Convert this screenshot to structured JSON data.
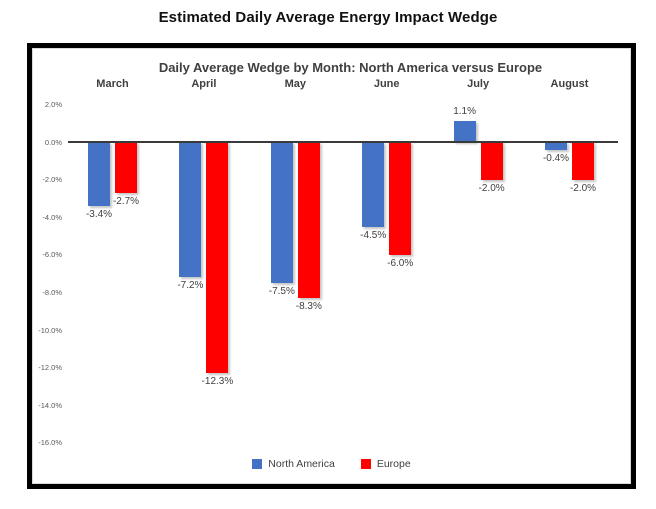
{
  "page_title": "Estimated Daily Average Energy Impact Wedge",
  "chart_data": {
    "type": "bar",
    "title": "Daily Average Wedge by Month: North America versus Europe",
    "categories": [
      "March",
      "April",
      "May",
      "June",
      "July",
      "August"
    ],
    "series": [
      {
        "name": "North America",
        "color": "#4472C4",
        "values": [
          -3.4,
          -7.2,
          -7.5,
          -4.5,
          1.1,
          -0.4
        ],
        "labels": [
          "-3.4%",
          "-7.2%",
          "-7.5%",
          "-4.5%",
          "1.1%",
          "-0.4%"
        ]
      },
      {
        "name": "Europe",
        "color": "#FF0000",
        "values": [
          -2.7,
          -12.3,
          -8.3,
          -6.0,
          -2.0,
          -2.0
        ],
        "labels": [
          "-2.7%",
          "-12.3%",
          "-8.3%",
          "-6.0%",
          "-2.0%",
          "-2.0%"
        ]
      }
    ],
    "y_axis": {
      "tick_labels": [
        "2.0%",
        "0.0%",
        "-2.0%",
        "-4.0%",
        "-6.0%",
        "-8.0%",
        "-10.0%",
        "-12.0%",
        "-14.0%",
        "-16.0%"
      ],
      "tick_values": [
        2,
        0,
        -2,
        -4,
        -6,
        -8,
        -10,
        -12,
        -14,
        -16
      ]
    },
    "ylim": [
      -16,
      2
    ],
    "grid": false,
    "legend_position": "bottom"
  }
}
